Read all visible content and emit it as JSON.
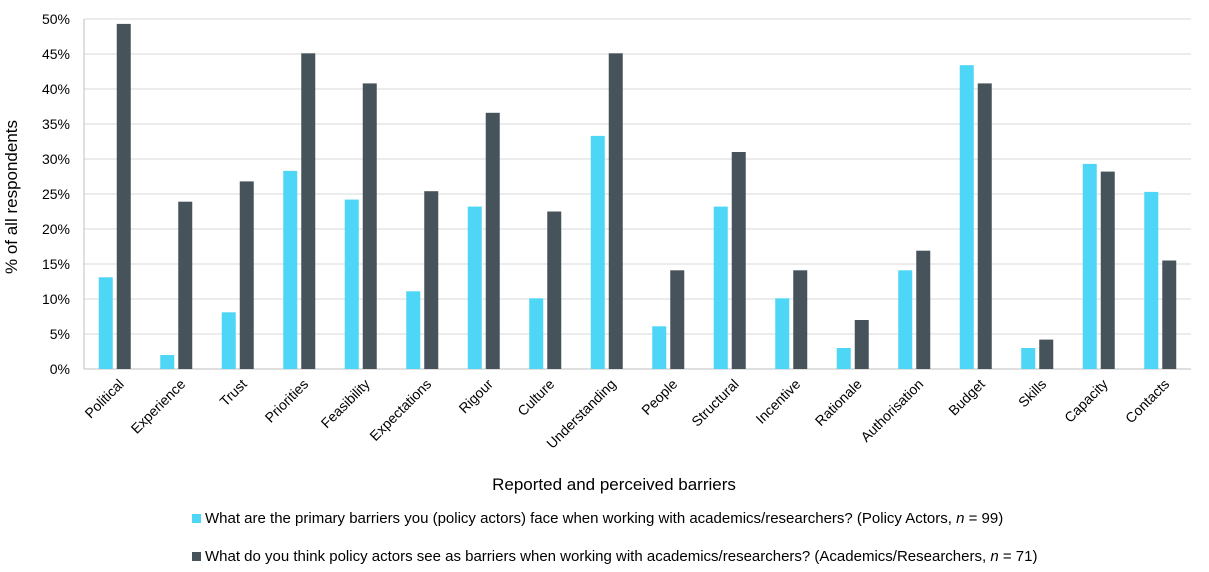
{
  "chart_data": {
    "type": "bar",
    "title": "",
    "xlabel": "Reported and perceived barriers",
    "ylabel": "% of all respondents",
    "ylim": [
      0,
      50
    ],
    "yticks": [
      "0%",
      "5%",
      "10%",
      "15%",
      "20%",
      "25%",
      "30%",
      "35%",
      "40%",
      "45%",
      "50%"
    ],
    "grid": true,
    "legend_position": "bottom",
    "categories": [
      "Political",
      "Experience",
      "Trust",
      "Priorities",
      "Feasibility",
      "Expectations",
      "Rigour",
      "Culture",
      "Understanding",
      "People",
      "Structural",
      "Incentive",
      "Rationale",
      "Authorisation",
      "Budget",
      "Skills",
      "Capacity",
      "Contacts"
    ],
    "series": [
      {
        "name": "What are the primary barriers you (policy actors) face when working with academics/researchers? (Policy Actors, n = 99)",
        "legend_prefix": "What are the primary barriers you (policy actors) face when working with academics/researchers? (Policy Actors, ",
        "legend_italic": "n",
        "legend_suffix": " = 99)",
        "color": "#4dd6f5",
        "values": [
          13.1,
          2.0,
          8.1,
          28.3,
          24.2,
          11.1,
          23.2,
          10.1,
          33.3,
          6.1,
          23.2,
          10.1,
          3.0,
          14.1,
          43.4,
          3.0,
          29.3,
          25.3
        ]
      },
      {
        "name": "What do you think policy actors see as barriers when working with academics/researchers? (Academics/Researchers, n = 71)",
        "legend_prefix": "What do you think policy actors see as barriers when working with academics/researchers? (Academics/Researchers, ",
        "legend_italic": "n",
        "legend_suffix": " = 71)",
        "color": "#47535b",
        "values": [
          49.3,
          23.9,
          26.8,
          45.1,
          40.8,
          25.4,
          36.6,
          22.5,
          45.1,
          14.1,
          31.0,
          14.1,
          7.0,
          16.9,
          40.8,
          4.2,
          28.2,
          15.5
        ]
      }
    ]
  }
}
